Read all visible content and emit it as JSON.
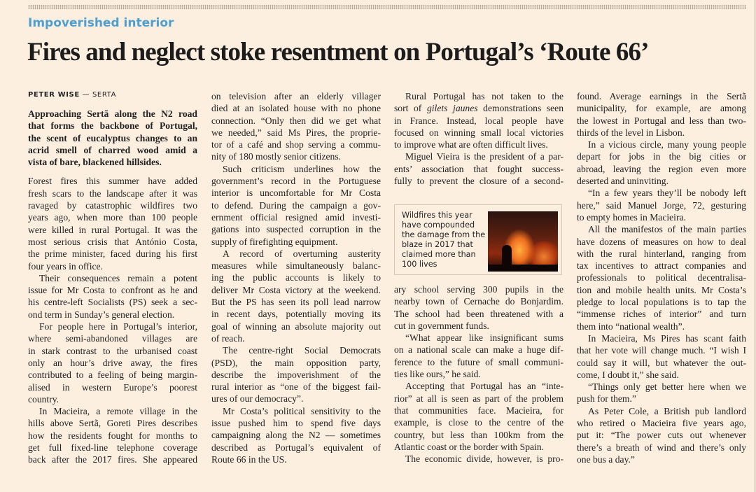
{
  "kicker": "Impoverished interior",
  "headline": "Fires and neglect stoke resentment on Portugal’s ‘Route 66’",
  "byline": {
    "author": "PETER WISE",
    "separator": " — ",
    "location": "SERTA"
  },
  "caption": {
    "text": "Wildfires this year have compounded the damage from the blaze in 2017 that claimed more than 100 lives",
    "image": "wildfire-silhouette-photo"
  },
  "colors": {
    "background": "#fcefe0",
    "kicker": "#4d9fd1",
    "text": "#222222"
  },
  "columns": [
    {
      "blocks": [
        {
          "lead": true,
          "indent": false,
          "lines": [
            "Approaching Sertã along the N2 road",
            "that forms the backbone of Portugal,",
            "the scent of eucalyptus changes to an",
            "acrid smell of charred wood amid a",
            "vista of bare, blackened hillsides."
          ]
        },
        {
          "gap": true,
          "indent": false,
          "lines": [
            "Forest fires this summer have added",
            "fresh scars to the landscape after it was",
            "ravaged by catastrophic wildfires two",
            "years ago, when more than 100 people",
            "were killed in rural Portugal. It was the",
            "most serious crisis that António Costa,",
            "the prime minister, faced during his first",
            "four years in office."
          ]
        },
        {
          "indent": true,
          "lines": [
            "Their consequences remain a potent",
            "issue for Mr Costa to confront as he and",
            "his centre-left Socialists (PS) seek a sec-",
            "ond term in Sunday’s general election."
          ]
        },
        {
          "indent": true,
          "lines": [
            "For people here in Portugal’s interior,",
            "where semi-abandoned villages are",
            "in stark contrast to the urbanised coast",
            "only an hour’s drive away, the fires",
            "contributed to a feeling of being margin-",
            "alised in western Europe’s poorest",
            "country."
          ]
        },
        {
          "indent": true,
          "cont": true,
          "lines": [
            "In Macieira, a remote village in the",
            "hills above Sertã, Goreti Pires describes",
            "how the residents fought for months to",
            "get full fixed-line telephone coverage",
            "back after the 2017 fires. She appeared"
          ]
        }
      ]
    },
    {
      "blocks": [
        {
          "indent": false,
          "lines": [
            "on television after an elderly villager",
            "died at an isolated house with no phone",
            "connection. “Only then did we get what",
            "we needed,” said Ms Pires, the proprie-",
            "tor of a café and shop serving a commu-",
            "nity of 180 mostly senior citizens."
          ]
        },
        {
          "indent": true,
          "lines": [
            "Such criticism underlines how the",
            "government’s record in the Portuguese",
            "interior is uncomfortable for Mr Costa",
            "to defend. During the campaign a gov-",
            "ernment official resigned amid investi-",
            "gations into suspected corruption in the",
            "supply of firefighting equipment."
          ]
        },
        {
          "indent": true,
          "lines": [
            "A record of overturning austerity",
            "measures while simultaneously balanc-",
            "ing the public accounts is likely to",
            "deliver Mr Costa victory at the weekend.",
            "But the PS has seen its poll lead narrow",
            "in recent days, potentially moving its",
            "goal of winning an absolute majority out",
            "of reach."
          ]
        },
        {
          "indent": true,
          "lines": [
            "The centre-right Social Democrats",
            "(PSD), the main opposition party,",
            "describe the impoverishment of the",
            "rural interior as “one of the biggest fail-",
            "ures of our democracy”."
          ]
        },
        {
          "indent": true,
          "lines": [
            "Mr Costa’s political sensitivity to the",
            "issue pushed him to spend five days",
            "campaigning along the N2 — sometimes",
            "described as Portugal’s equivalent of",
            "Route 66 in the US."
          ]
        }
      ]
    },
    {
      "blocks": [
        {
          "indent": true,
          "lines": [
            "Rural Portugal has not taken to the",
            {
              "pre": "sort of ",
              "em": "gilets jaunes",
              "post": " demonstrations seen"
            },
            "in France. Instead, local people have",
            "focused on winning small local victories",
            "to improve what are often difficult lives."
          ]
        },
        {
          "indent": true,
          "cont": true,
          "lines": [
            "Miguel Vieira is the president of a par-",
            "ents’ association that fought success-",
            "fully to prevent the closure of a second-"
          ]
        }
      ]
    },
    {
      "blocks": [
        {
          "indent": false,
          "lines": [
            "ary school serving 300 pupils in the",
            "nearby town of Cernache do Bonjardim.",
            "The school had been threatened with a",
            "cut in government funds."
          ]
        },
        {
          "indent": true,
          "lines": [
            "“What appear like insignificant sums",
            "on a national scale can make a huge dif-",
            "ference to the future of small communi-",
            "ties like ours,” he said."
          ]
        },
        {
          "indent": true,
          "lines": [
            "Accepting that Portugal has an “inte-",
            "rior” at all is seen as part of the problem",
            "that communities face. Macieira, for",
            "example, is close to the centre of the",
            "country, but less than 100km from the",
            "Atlantic coast or the border with Spain."
          ]
        },
        {
          "indent": true,
          "cont": true,
          "lines": [
            "The economic divide, however, is pro-"
          ]
        }
      ]
    },
    {
      "blocks": [
        {
          "indent": false,
          "lines": [
            "found. Average earnings in the Sertã",
            "municipality, for example, are among",
            "the lowest in Portugal and less than two-",
            "thirds of the level in Lisbon."
          ]
        },
        {
          "indent": true,
          "lines": [
            "In a vicious circle, many young people",
            "depart for jobs in the big cities or",
            "abroad, leaving the region even more",
            "deserted and uninviting."
          ]
        },
        {
          "indent": true,
          "lines": [
            "“In a few years they’ll be nobody left",
            "here,” said Manuel Jorge, 72, gesturing",
            "to empty homes in Macieira."
          ]
        },
        {
          "indent": true,
          "lines": [
            "All the manifestos of the main parties",
            "have dozens of measures on how to deal",
            "with the rural hinterland, ranging from",
            "tax incentives to attract companies and",
            "professionals to political decentralisa-",
            "tion and mobile health units. Mr Costa’s",
            "pledge to local populations is to tap the",
            "“immense riches of interior” and turn",
            "them into “national wealth”."
          ]
        },
        {
          "indent": true,
          "lines": [
            "In Macieira, Ms Pires has scant faith",
            "that her vote will change much. “I wish I",
            "could say it will, but whatever the out-",
            "come, I doubt it,” she said."
          ]
        },
        {
          "indent": true,
          "lines": [
            "“Things only get better here when we",
            "push for them.”"
          ]
        },
        {
          "indent": true,
          "lines": [
            "As Peter Cole, a British pub landlord",
            "who retired o Macieira five years ago,",
            "put it: “The power cuts out whenever",
            "there’s a breath of wind and there’s only",
            "one bus a day.”"
          ]
        }
      ]
    }
  ]
}
